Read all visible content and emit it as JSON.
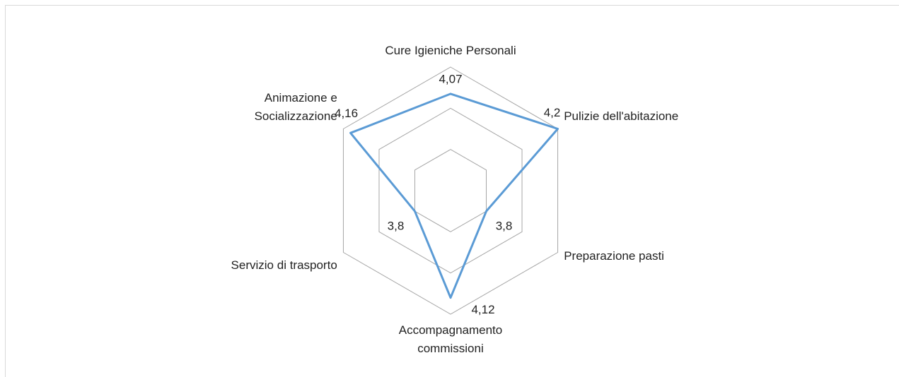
{
  "chart_data": {
    "type": "radar",
    "categories": [
      "Cure Igieniche Personali",
      "Pulizie dell'abitazione",
      "Preparazione pasti",
      "Accompagnamento\ncommissioni",
      "Servizio di trasporto",
      "Animazione e\nSocializzazione"
    ],
    "values": [
      4.07,
      4.2,
      3.8,
      4.12,
      3.8,
      4.16
    ],
    "value_labels": [
      "4,07",
      "4,2",
      "3,8",
      "4,12",
      "3,8",
      "4,16"
    ],
    "color": "#5b9bd5",
    "ylim": [
      3.6,
      4.2
    ],
    "yticks": [
      3.6,
      3.8,
      4.0,
      4.2
    ],
    "grid": true
  }
}
